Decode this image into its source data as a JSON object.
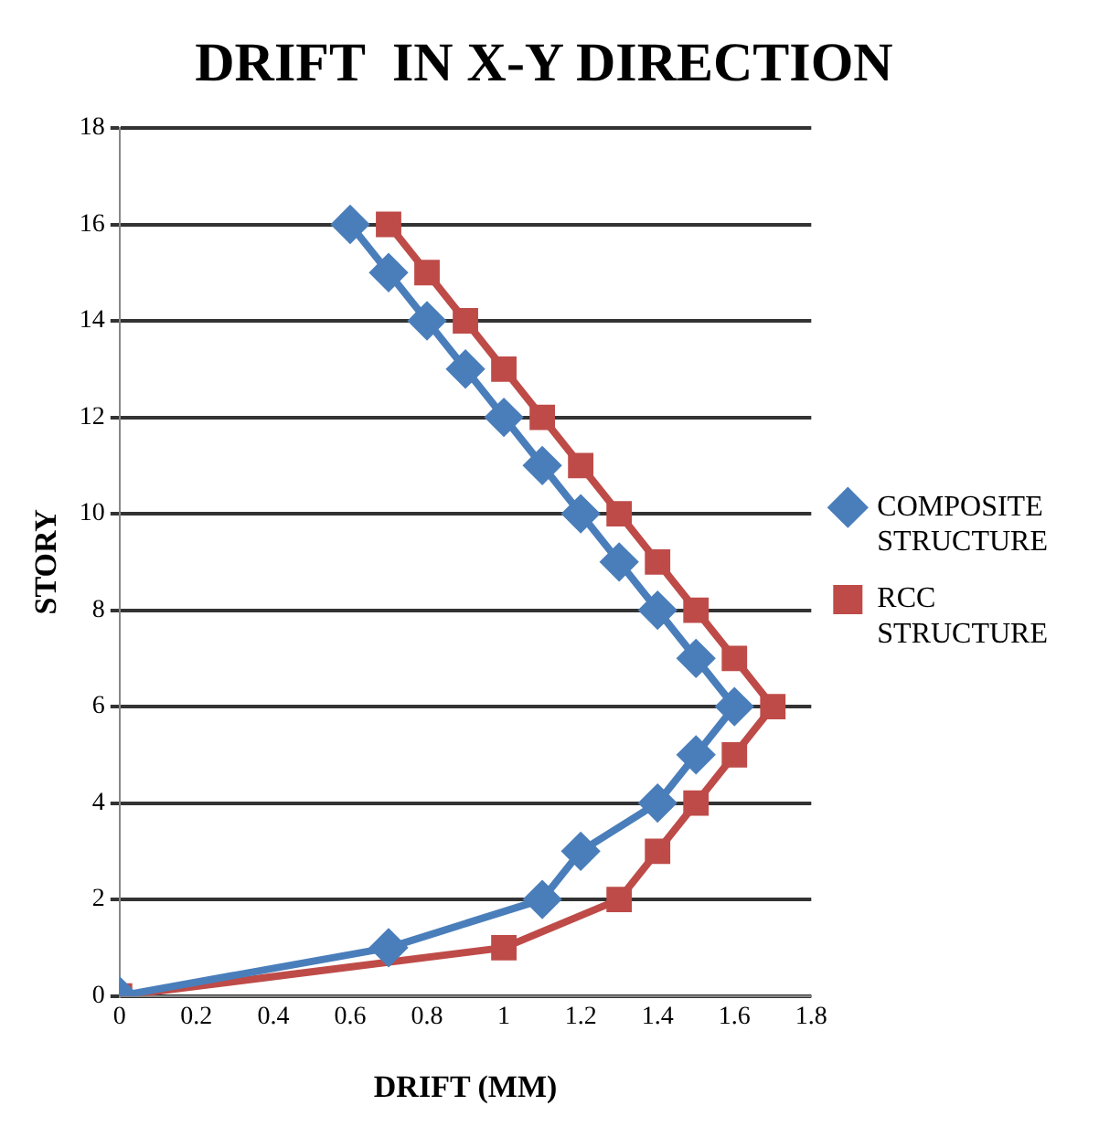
{
  "chart_data": {
    "type": "line",
    "title": "DRIFT  IN X-Y DIRECTION",
    "xlabel": "DRIFT (MM)",
    "ylabel": "STORY",
    "xlim": [
      0,
      1.8
    ],
    "xticks": [
      0,
      0.2,
      0.4,
      0.6,
      0.8,
      1,
      1.2,
      1.4,
      1.6,
      1.8
    ],
    "ylim": [
      0,
      18
    ],
    "yticks": [
      0,
      2,
      4,
      6,
      8,
      10,
      12,
      14,
      16,
      18
    ],
    "grid": "y",
    "legend": "right",
    "series": [
      {
        "name": "COMPOSITE STRUCTURE",
        "color": "#4a7ebb",
        "marker": "diamond",
        "x": [
          0,
          0.7,
          1.1,
          1.2,
          1.4,
          1.5,
          1.6,
          1.5,
          1.4,
          1.3,
          1.2,
          1.1,
          1.0,
          0.9,
          0.8,
          0.7,
          0.6
        ],
        "values": [
          0,
          1,
          2,
          3,
          4,
          5,
          6,
          7,
          8,
          9,
          10,
          11,
          12,
          13,
          14,
          15,
          16
        ]
      },
      {
        "name": "RCC STRUCTURE",
        "color": "#be4b48",
        "marker": "square",
        "x": [
          0,
          1.0,
          1.3,
          1.4,
          1.5,
          1.6,
          1.7,
          1.6,
          1.5,
          1.4,
          1.3,
          1.2,
          1.1,
          1.0,
          0.9,
          0.8,
          0.7
        ],
        "values": [
          0,
          1,
          2,
          3,
          4,
          5,
          6,
          7,
          8,
          9,
          10,
          11,
          12,
          13,
          14,
          15,
          16
        ]
      }
    ]
  }
}
